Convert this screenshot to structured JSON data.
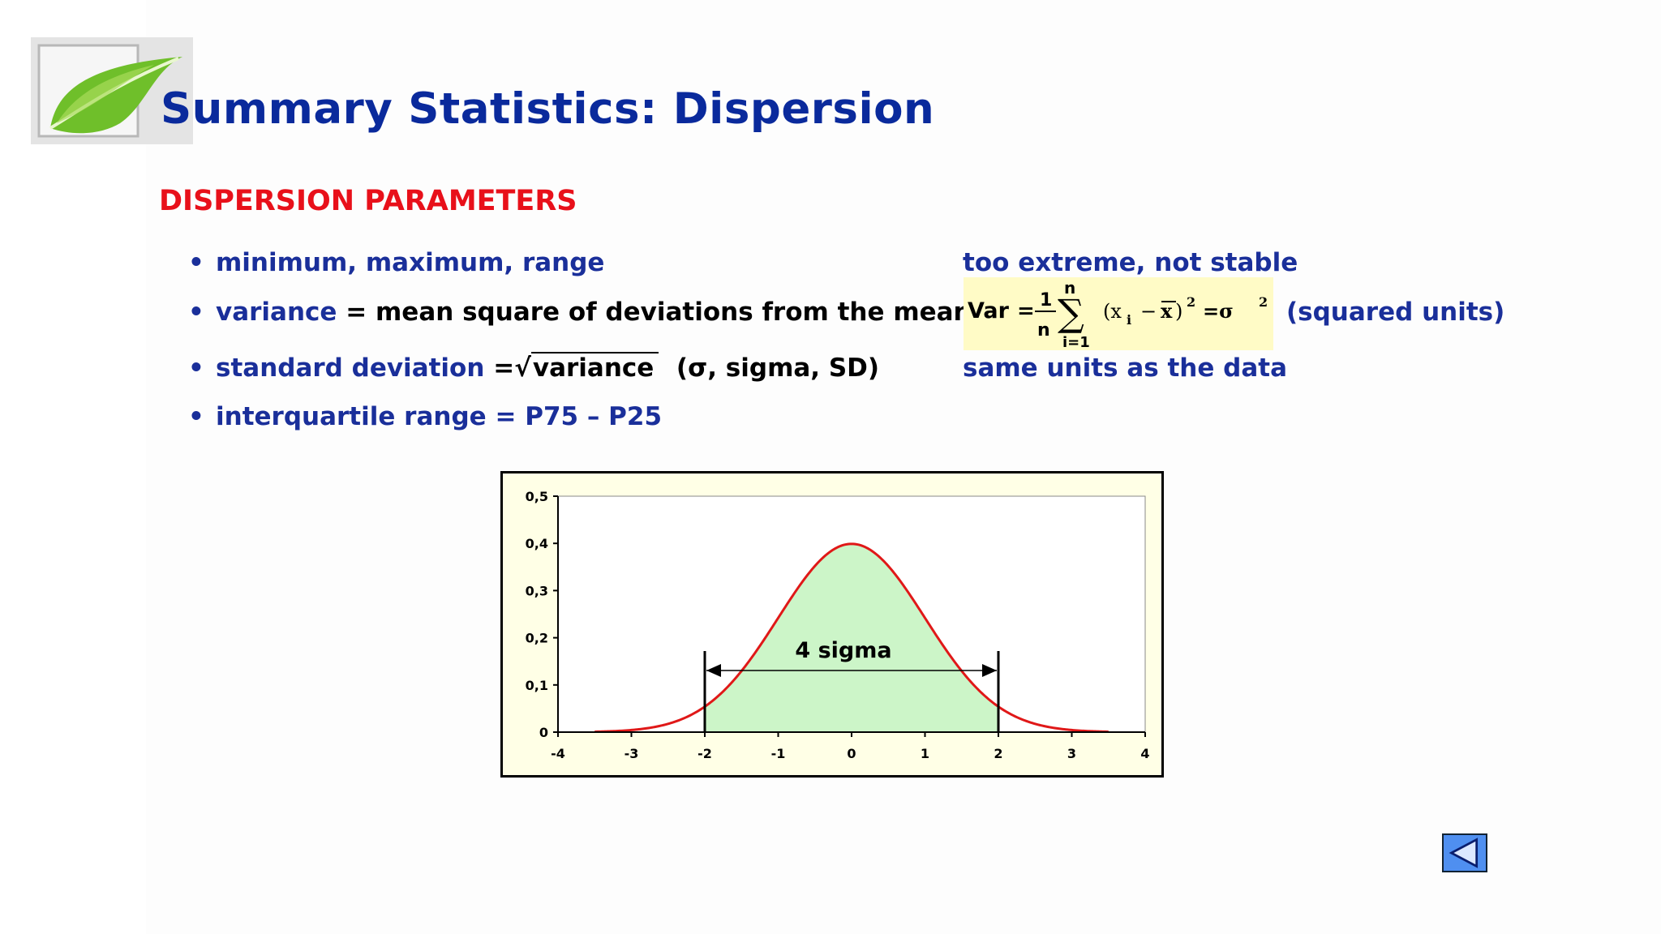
{
  "title": "Summary Statistics: Dispersion",
  "section_heading": "DISPERSION PARAMETERS",
  "bullets": [
    {
      "label": "minimum, maximum, range",
      "note": "too extreme, not stable"
    },
    {
      "label": "variance",
      "label_rest": " = mean square of deviations from the mean",
      "note": "(squared units)"
    },
    {
      "label": "standard deviation",
      "eq": " =",
      "sqrt_text": "variance",
      "paren": "(σ, sigma, SD)",
      "note": "same units as the data"
    },
    {
      "label": "interquartile range = P75 – P25"
    }
  ],
  "formula": {
    "lhs": "Var",
    "fraction_num": "1",
    "fraction_den": "n",
    "sum_top": "n",
    "sum_bottom": "i=1",
    "sum_symbol": "∑",
    "body": "(x",
    "sub": "i",
    "minus": "−",
    "xbar": "x",
    "close": ")",
    "power": "2",
    "equals_sigma": "=σ",
    "sigma_power": "2",
    "eq": "="
  },
  "chart_data": {
    "type": "area",
    "series": [
      {
        "function": "standard normal density",
        "mean": 0,
        "sd": 1
      }
    ],
    "x_range": [
      -4,
      4
    ],
    "ylim": [
      0,
      0.5
    ],
    "x_ticks": [
      "-4",
      "-3",
      "-2",
      "-1",
      "0",
      "1",
      "2",
      "3",
      "4"
    ],
    "y_ticks": [
      "0",
      "0,1",
      "0,2",
      "0,3",
      "0,4",
      "0,5"
    ],
    "shaded_interval": [
      -2,
      2
    ],
    "annotation": "4 sigma",
    "line_color": "#e01818",
    "fill_color": "#ccf5c8",
    "background_color": "#ffffe6"
  },
  "nav": {
    "back_icon": "left-triangle-icon"
  }
}
